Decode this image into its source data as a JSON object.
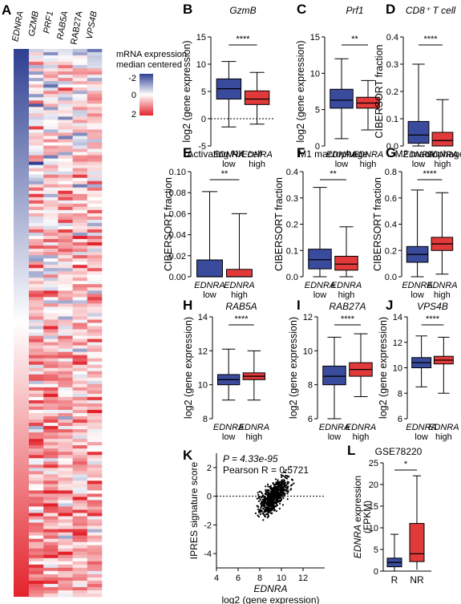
{
  "colors": {
    "low": "#3a4a9c",
    "high": "#e23a3a",
    "heat_blue": "#2e3f92",
    "heat_red": "#e3232c"
  },
  "heatmap": {
    "label": "A",
    "genes": [
      "EDNRA",
      "GZMB",
      "PRF1",
      "RAB5A",
      "RAB27A",
      "VPS4B"
    ],
    "gene_italic": [
      true,
      true,
      true,
      true,
      false,
      true
    ],
    "legend_title": [
      "mRNA expression",
      "median centered"
    ],
    "legend_ticks": [
      "-2",
      "0",
      "2"
    ]
  },
  "groups": {
    "low_top": "EDNRA",
    "low_bottom": "low",
    "high_top": "EDNRA",
    "high_bottom": "high"
  },
  "panels": [
    {
      "id": "B",
      "title": "GzmB",
      "title_italic": true,
      "ylabel": "log2 (gene expression)",
      "sig": "****",
      "ylim": [
        -5,
        15
      ],
      "ticks": [
        "-5",
        "0",
        "5",
        "10",
        "15"
      ],
      "tickvals": [
        -5,
        0,
        5,
        10,
        15
      ],
      "dotted_zero": true,
      "low": {
        "min": -1.5,
        "q1": 3.6,
        "med": 5.5,
        "q3": 7.3,
        "max": 10.5
      },
      "high": {
        "min": -1,
        "q1": 2.6,
        "med": 3.6,
        "q3": 5.1,
        "max": 8.5
      }
    },
    {
      "id": "C",
      "title": "Prf1",
      "title_italic": true,
      "ylabel": "log2 (gene expression)",
      "sig": "**",
      "ylim": [
        0,
        15
      ],
      "ticks": [
        "0",
        "5",
        "10",
        "15"
      ],
      "tickvals": [
        0,
        5,
        10,
        15
      ],
      "low": {
        "min": 1,
        "q1": 5.2,
        "med": 6.3,
        "q3": 7.8,
        "max": 12
      },
      "high": {
        "min": 2.2,
        "q1": 5.2,
        "med": 5.9,
        "q3": 6.7,
        "max": 9
      }
    },
    {
      "id": "D",
      "title": "CD8⁺ T cell",
      "title_italic": true,
      "ylabel": "CIBERSORT fraction",
      "sig": "****",
      "ylim": [
        0,
        0.4
      ],
      "ticks": [
        "0.0",
        "0.1",
        "0.2",
        "0.3",
        "0.4"
      ],
      "tickvals": [
        0,
        0.1,
        0.2,
        0.3,
        0.4
      ],
      "low": {
        "min": 0,
        "q1": 0.01,
        "med": 0.04,
        "q3": 0.09,
        "max": 0.3
      },
      "high": {
        "min": 0,
        "q1": 0,
        "med": 0.02,
        "q3": 0.05,
        "max": 0.17
      }
    },
    {
      "id": "E",
      "title": "Activating NK cell",
      "title_italic": false,
      "ylabel": "CIBERSORT fraction",
      "sig": "**",
      "ylim": [
        0,
        0.1
      ],
      "ticks": [
        "0.00",
        "0.02",
        "0.04",
        "0.06",
        "0.08",
        "0.10"
      ],
      "tickvals": [
        0,
        0.02,
        0.04,
        0.06,
        0.08,
        0.1
      ],
      "low": {
        "min": 0,
        "q1": 0,
        "med": 0,
        "q3": 0.016,
        "max": 0.081
      },
      "high": {
        "min": 0,
        "q1": 0,
        "med": 0,
        "q3": 0.007,
        "max": 0.06
      }
    },
    {
      "id": "F",
      "title": "M1 macrophage",
      "title_italic": false,
      "ylabel": "CIBERSORT fraction",
      "sig": "**",
      "ylim": [
        0,
        0.4
      ],
      "ticks": [
        "0.0",
        "0.1",
        "0.2",
        "0.3",
        "0.4"
      ],
      "tickvals": [
        0,
        0.1,
        0.2,
        0.3,
        0.4
      ],
      "low": {
        "min": 0,
        "q1": 0.03,
        "med": 0.065,
        "q3": 0.105,
        "max": 0.34
      },
      "high": {
        "min": 0,
        "q1": 0.025,
        "med": 0.048,
        "q3": 0.078,
        "max": 0.19
      }
    },
    {
      "id": "G",
      "title": "M2 macrophage",
      "title_italic": false,
      "ylabel": "CIBERSORT fraction",
      "sig": "****",
      "ylim": [
        0,
        0.8
      ],
      "ticks": [
        "0.0",
        "0.2",
        "0.4",
        "0.6",
        "0.8"
      ],
      "tickvals": [
        0,
        0.2,
        0.4,
        0.6,
        0.8
      ],
      "low": {
        "min": 0,
        "q1": 0.11,
        "med": 0.17,
        "q3": 0.23,
        "max": 0.66
      },
      "high": {
        "min": 0.02,
        "q1": 0.2,
        "med": 0.25,
        "q3": 0.3,
        "max": 0.64
      }
    },
    {
      "id": "H",
      "title": "RAB5A",
      "title_italic": true,
      "ylabel": "log2 (gene expression)",
      "sig": "****",
      "ylim": [
        8,
        14
      ],
      "ticks": [
        "8",
        "10",
        "12",
        "14"
      ],
      "tickvals": [
        8,
        10,
        12,
        14
      ],
      "low": {
        "min": 9.1,
        "q1": 10.0,
        "med": 10.3,
        "q3": 10.6,
        "max": 12.1
      },
      "high": {
        "min": 9.1,
        "q1": 10.3,
        "med": 10.5,
        "q3": 10.7,
        "max": 12.0
      }
    },
    {
      "id": "I",
      "title": "RAB27A",
      "title_italic": true,
      "ylabel": "log2 (gene expression)",
      "sig": "****",
      "ylim": [
        6,
        12
      ],
      "ticks": [
        "6",
        "8",
        "10",
        "12"
      ],
      "tickvals": [
        6,
        8,
        10,
        12
      ],
      "low": {
        "min": 6,
        "q1": 8.0,
        "med": 8.5,
        "q3": 9.1,
        "max": 10.8
      },
      "high": {
        "min": 7.3,
        "q1": 8.5,
        "med": 8.9,
        "q3": 9.3,
        "max": 11.0
      }
    },
    {
      "id": "J",
      "title": "VPS4B",
      "title_italic": true,
      "ylabel": "log2 (gene expression)",
      "sig": "****",
      "ylim": [
        6,
        14
      ],
      "ticks": [
        "6",
        "8",
        "10",
        "12",
        "14"
      ],
      "tickvals": [
        6,
        8,
        10,
        12,
        14
      ],
      "low": {
        "min": 8.5,
        "q1": 10.0,
        "med": 10.4,
        "q3": 10.8,
        "max": 12.5
      },
      "high": {
        "min": 8,
        "q1": 10.3,
        "med": 10.6,
        "q3": 10.9,
        "max": 12.4
      }
    }
  ],
  "scatter": {
    "id": "K",
    "ylabel": "IPRES signature score",
    "xlabel_top": "EDNRA",
    "xlabel_bottom": "log2 (gene expression)",
    "p_text": "P = 4.33e-95",
    "r_text": "Pearson R = 0.5721",
    "xlim": [
      4,
      14
    ],
    "ylim": [
      -5,
      3
    ],
    "xticks": [
      "4",
      "6",
      "8",
      "10",
      "12"
    ],
    "xtickvals": [
      4,
      6,
      8,
      10,
      12
    ],
    "yticks": [
      "-4",
      "-2",
      "0",
      "2"
    ],
    "ytickvals": [
      -4,
      -2,
      0,
      2
    ],
    "n_points": 700,
    "slope": 0.55,
    "center": [
      9.3,
      0
    ]
  },
  "gse": {
    "id": "L",
    "title": "GSE78220",
    "ylabel_ital": "EDNRA",
    "ylabel_rest": " expression",
    "ylabel2": "(FPKM)",
    "sig": "*",
    "ylim": [
      0,
      25
    ],
    "ticks": [
      "0",
      "5",
      "10",
      "15",
      "20",
      "25"
    ],
    "tickvals": [
      0,
      5,
      10,
      15,
      20,
      25
    ],
    "cats": [
      "R",
      "NR"
    ],
    "R": {
      "min": 0,
      "q1": 1,
      "med": 2,
      "q3": 3,
      "max": 8.5
    },
    "NR": {
      "min": 0.3,
      "q1": 2.2,
      "med": 4,
      "q3": 11,
      "max": 22
    }
  }
}
